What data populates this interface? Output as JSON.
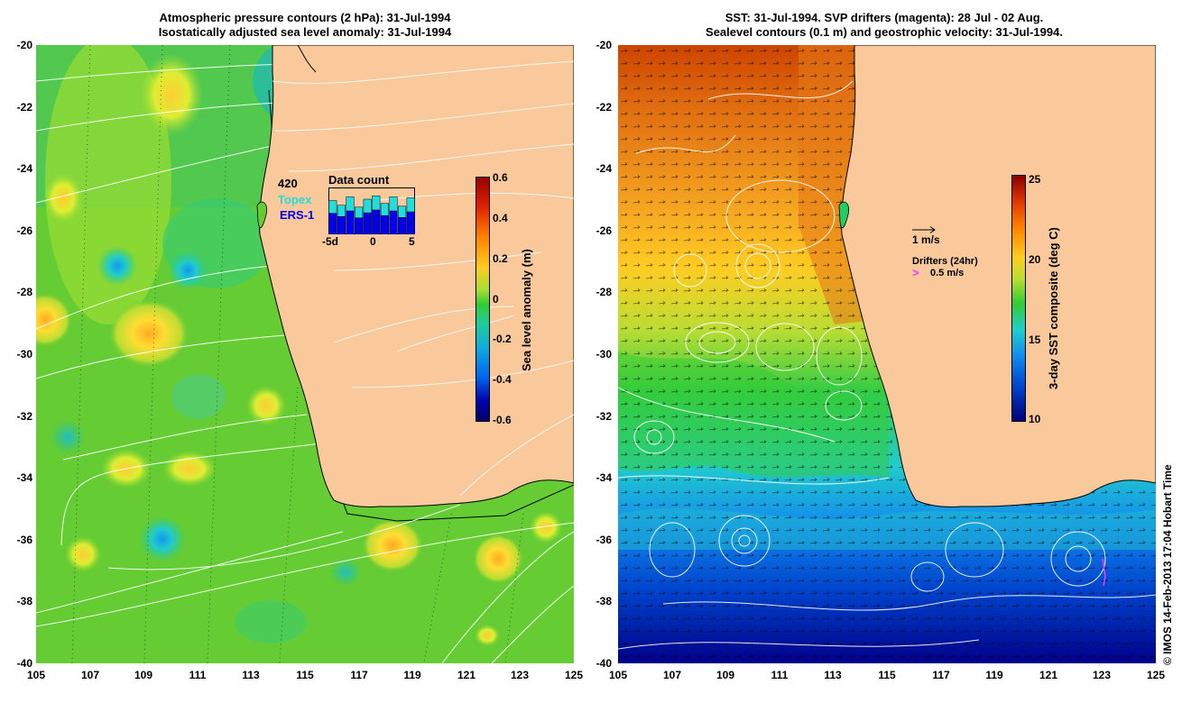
{
  "left_panel": {
    "title_line1": "Atmospheric pressure contours (2 hPa): 31-Jul-1994",
    "title_line2": "Isostatically adjusted sea level anomaly: 31-Jul-1994",
    "colorbar": {
      "title": "Sea level anomaly (m)",
      "ticks": [
        "0.6",
        "0.4",
        "0.2",
        "0",
        "-0.2",
        "-0.4",
        "-0.6"
      ],
      "min": -0.6,
      "max": 0.6
    },
    "data_count": {
      "title": "Data count",
      "max_label": "420",
      "topex_label": "Topex",
      "ers_label": "ERS-1",
      "x_labels": [
        "-5d",
        "0",
        "5"
      ],
      "topex_color": "#22dddd",
      "ers_color": "#0000ee",
      "values_total": [
        0.72,
        0.62,
        0.8,
        0.58,
        0.75,
        0.82,
        0.66,
        0.8,
        0.6,
        0.78
      ],
      "values_ers": [
        0.45,
        0.38,
        0.5,
        0.35,
        0.46,
        0.52,
        0.4,
        0.5,
        0.36,
        0.48
      ]
    }
  },
  "right_panel": {
    "title_line1": "SST: 31-Jul-1994. SVP drifters (magenta): 28 Jul - 02 Aug.",
    "title_line2": "Sealevel contours (0.1 m) and geostrophic velocity: 31-Jul-1994.",
    "colorbar": {
      "title": "3-day SST composite (deg C)",
      "ticks": [
        "25",
        "20",
        "15",
        "10"
      ],
      "min": 10,
      "max": 25
    },
    "vector_legend": "1 m/s",
    "drifter_legend_title": "Drifters (24hr)",
    "drifter_legend_value": "0.5 m/s",
    "drifter_color": "#ff33ff"
  },
  "axes": {
    "lat_ticks": [
      "-20",
      "-22",
      "-24",
      "-26",
      "-28",
      "-30",
      "-32",
      "-34",
      "-36",
      "-38",
      "-40"
    ],
    "lon_ticks": [
      "105",
      "107",
      "109",
      "111",
      "113",
      "115",
      "117",
      "119",
      "121",
      "123",
      "125"
    ],
    "lat_range": [
      -40,
      -20
    ],
    "lon_range": [
      105,
      125
    ]
  },
  "colors": {
    "land": "#f9c89b",
    "ocean_mid": "#33cc33"
  },
  "credit": "© IMOS 14-Feb-2013 17:04 Hobart Time"
}
